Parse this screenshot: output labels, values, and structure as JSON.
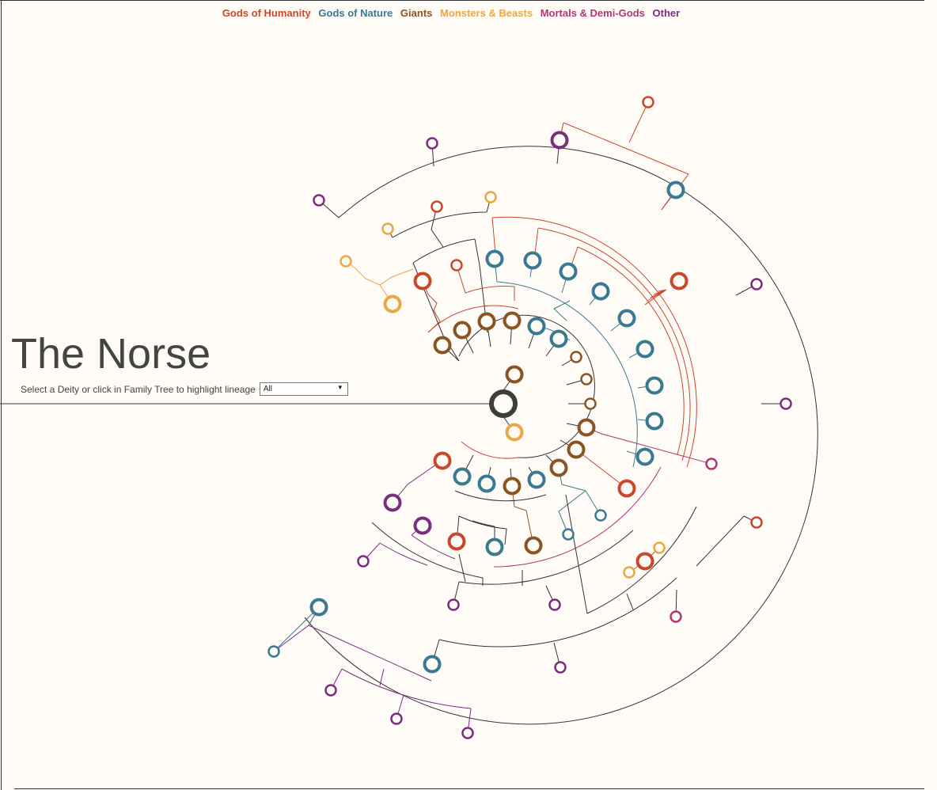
{
  "colors": {
    "humanity": "#c9482c",
    "nature": "#3a7a91",
    "giants": "#8a5524",
    "monsters": "#eba744",
    "mortals": "#b33577",
    "other": "#7a2e7e",
    "root": "#3d3d3d",
    "line": "#333333"
  },
  "legend": [
    {
      "label": "Gods of Humanity",
      "color": "#c9482c"
    },
    {
      "label": "Gods of Nature",
      "color": "#3a7a91"
    },
    {
      "label": "Giants",
      "color": "#8a5524"
    },
    {
      "label": "Monsters & Beasts",
      "color": "#eba744"
    },
    {
      "label": "Mortals & Demi-Gods",
      "color": "#b33577"
    },
    {
      "label": "Other",
      "color": "#7a2e7e"
    }
  ],
  "title": "The Norse",
  "selector": {
    "label": "Select a Deity or click in Family Tree to highlight lineage",
    "value": "All"
  },
  "nodes_large": [
    [
      "giants",
      650,
      473
    ],
    [
      "monsters",
      650,
      546
    ],
    [
      "giants",
      559,
      436
    ],
    [
      "giants",
      584,
      417
    ],
    [
      "giants",
      615,
      406
    ],
    [
      "giants",
      647,
      405
    ],
    [
      "nature",
      678,
      412
    ],
    [
      "nature",
      706,
      428
    ],
    [
      "humanity",
      534,
      355
    ],
    [
      "monsters",
      496,
      384
    ],
    [
      "nature",
      625,
      327
    ],
    [
      "nature",
      673,
      329
    ],
    [
      "nature",
      718,
      343
    ],
    [
      "nature",
      759,
      368
    ],
    [
      "nature",
      792,
      402
    ],
    [
      "nature",
      815,
      441
    ],
    [
      "nature",
      827,
      487
    ],
    [
      "nature",
      827,
      532
    ],
    [
      "nature",
      815,
      577
    ],
    [
      "humanity",
      858,
      355
    ],
    [
      "giants",
      741,
      540
    ],
    [
      "giants",
      728,
      568
    ],
    [
      "giants",
      706,
      591
    ],
    [
      "nature",
      678,
      606
    ],
    [
      "giants",
      647,
      614
    ],
    [
      "nature",
      615,
      611
    ],
    [
      "nature",
      584,
      602
    ],
    [
      "humanity",
      559,
      582
    ],
    [
      "humanity",
      792,
      617
    ],
    [
      "humanity",
      577,
      684
    ],
    [
      "nature",
      625,
      691
    ],
    [
      "giants",
      674,
      689
    ],
    [
      "other",
      534,
      664
    ],
    [
      "other",
      496,
      635
    ],
    [
      "humanity",
      815,
      709
    ],
    [
      "other",
      707,
      177
    ],
    [
      "nature",
      854,
      240
    ],
    [
      "nature",
      403,
      767
    ],
    [
      "nature",
      546,
      839
    ]
  ],
  "nodes_small": [
    [
      "giants",
      728,
      451
    ],
    [
      "giants",
      741,
      479
    ],
    [
      "giants",
      746,
      510
    ],
    [
      "humanity",
      577,
      335
    ],
    [
      "other",
      546,
      181
    ],
    [
      "other",
      403,
      253
    ],
    [
      "humanity",
      552,
      261
    ],
    [
      "monsters",
      620,
      249
    ],
    [
      "monsters",
      490,
      289
    ],
    [
      "monsters",
      437,
      330
    ],
    [
      "humanity",
      819,
      129
    ],
    [
      "other",
      956,
      359
    ],
    [
      "other",
      993,
      510
    ],
    [
      "mortals",
      899,
      586
    ],
    [
      "nature",
      759,
      651
    ],
    [
      "nature",
      718,
      675
    ],
    [
      "monsters",
      833,
      692
    ],
    [
      "monsters",
      795,
      723
    ],
    [
      "humanity",
      956,
      660
    ],
    [
      "mortals",
      854,
      779
    ],
    [
      "other",
      459,
      709
    ],
    [
      "other",
      573,
      764
    ],
    [
      "other",
      701,
      764
    ],
    [
      "other",
      708,
      843
    ],
    [
      "nature",
      346,
      823
    ],
    [
      "other",
      418,
      872
    ],
    [
      "other",
      501,
      908
    ],
    [
      "other",
      591,
      926
    ]
  ]
}
